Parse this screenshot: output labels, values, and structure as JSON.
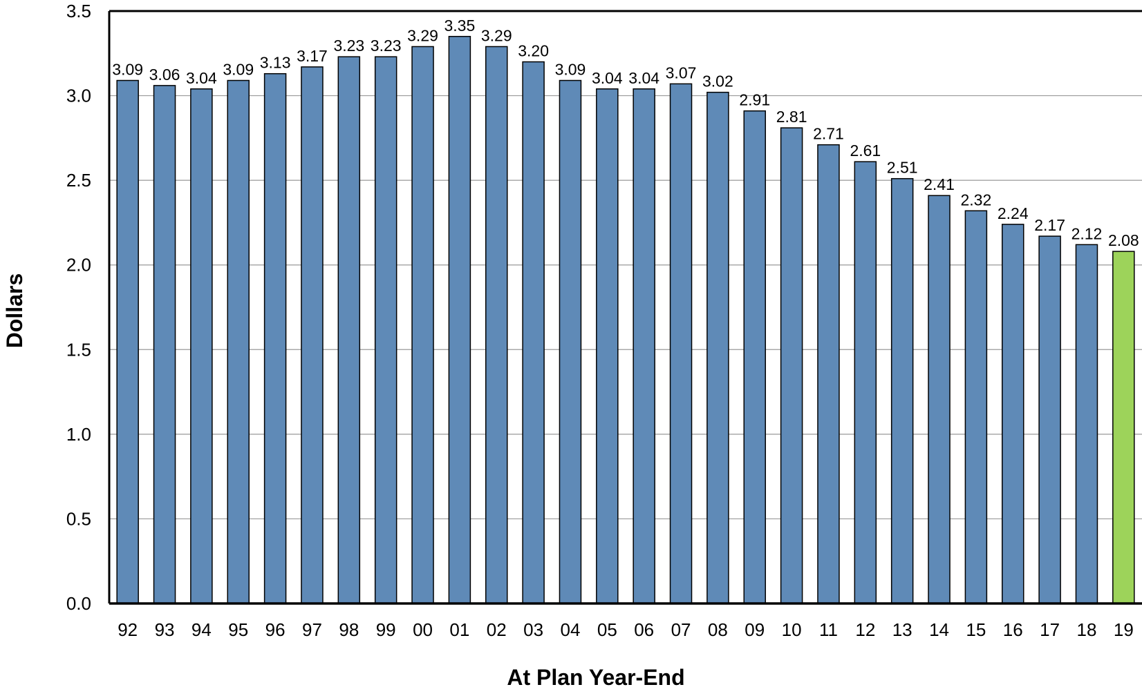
{
  "chart_data": {
    "type": "bar",
    "title": "",
    "xlabel": "At Plan Year-End",
    "ylabel": "Dollars",
    "ylim": [
      0,
      3.5
    ],
    "yticks": [
      "0.0",
      "0.5",
      "1.0",
      "1.5",
      "2.0",
      "2.5",
      "3.0",
      "3.5"
    ],
    "grid": "horizontal",
    "categories": [
      "92",
      "93",
      "94",
      "95",
      "96",
      "97",
      "98",
      "99",
      "00",
      "01",
      "02",
      "03",
      "04",
      "05",
      "06",
      "07",
      "08",
      "09",
      "10",
      "11",
      "12",
      "13",
      "14",
      "15",
      "16",
      "17",
      "18",
      "19"
    ],
    "values": [
      3.09,
      3.06,
      3.04,
      3.09,
      3.13,
      3.17,
      3.23,
      3.23,
      3.29,
      3.35,
      3.29,
      3.2,
      3.09,
      3.04,
      3.04,
      3.07,
      3.02,
      2.91,
      2.81,
      2.71,
      2.61,
      2.51,
      2.41,
      2.32,
      2.24,
      2.17,
      2.12,
      2.08
    ],
    "value_labels": [
      "3.09",
      "3.06",
      "3.04",
      "3.09",
      "3.13",
      "3.17",
      "3.23",
      "3.23",
      "3.29",
      "3.35",
      "3.29",
      "3.20",
      "3.09",
      "3.04",
      "3.04",
      "3.07",
      "3.02",
      "2.91",
      "2.81",
      "2.71",
      "2.61",
      "2.51",
      "2.41",
      "2.32",
      "2.24",
      "2.17",
      "2.12",
      "2.08"
    ],
    "colors": {
      "bar": "#5f8ab7",
      "highlight": "#9dd35a",
      "grid": "#999999",
      "axis": "#000000"
    },
    "highlight_index": 27
  }
}
